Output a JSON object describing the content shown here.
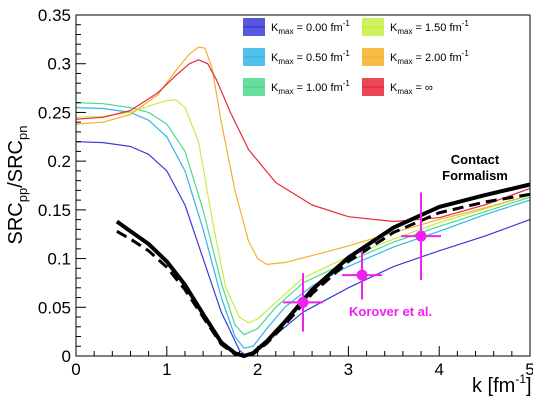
{
  "chart_data": {
    "type": "line",
    "xlabel": "k [fm",
    "xlabel_sup": "-1",
    "xlabel_end": "]",
    "ylabel_parts": [
      "SRC",
      "pp",
      "/SRC",
      "pn"
    ],
    "xlim": [
      0,
      5
    ],
    "ylim": [
      0,
      0.35
    ],
    "xticks": [
      0,
      1,
      2,
      3,
      4,
      5
    ],
    "xtick_labels": [
      "0",
      "1",
      "2",
      "3",
      "4",
      "5"
    ],
    "yticks": [
      0,
      0.05,
      0.1,
      0.15,
      0.2,
      0.25,
      0.3,
      0.35
    ],
    "ytick_labels": [
      "0",
      "0.05",
      "0.1",
      "0.15",
      "0.2",
      "0.25",
      "0.3",
      "0.35"
    ],
    "grid": false,
    "legend_position": "top-right",
    "series": [
      {
        "legend": {
          "main": "K",
          "sub": "max",
          "value": " = 0.00 fm",
          "sup": "-1"
        },
        "color": "#3b3bd8",
        "width": 1.2,
        "x": [
          0,
          0.3,
          0.6,
          0.8,
          1.0,
          1.2,
          1.4,
          1.6,
          1.8,
          1.85,
          1.9,
          2.0,
          2.2,
          2.5,
          3.0,
          3.5,
          4.0,
          4.5,
          5.0
        ],
        "y": [
          0.22,
          0.219,
          0.215,
          0.207,
          0.19,
          0.155,
          0.1,
          0.045,
          0.006,
          0.002,
          0.002,
          0.006,
          0.022,
          0.045,
          0.07,
          0.092,
          0.108,
          0.123,
          0.14
        ]
      },
      {
        "legend": {
          "main": "K",
          "sub": "max",
          "value": " = 0.50 fm",
          "sup": "-1"
        },
        "color": "#33b5e8",
        "width": 1.2,
        "x": [
          0,
          0.3,
          0.6,
          0.8,
          1.0,
          1.2,
          1.4,
          1.6,
          1.75,
          1.85,
          1.95,
          2.1,
          2.3,
          2.6,
          3.0,
          3.5,
          4.0,
          4.5,
          5.0
        ],
        "y": [
          0.255,
          0.254,
          0.25,
          0.242,
          0.225,
          0.19,
          0.13,
          0.06,
          0.02,
          0.008,
          0.01,
          0.028,
          0.05,
          0.072,
          0.092,
          0.112,
          0.128,
          0.145,
          0.16
        ]
      },
      {
        "legend": {
          "main": "K",
          "sub": "max",
          "value": " = 1.00 fm",
          "sup": "-1"
        },
        "color": "#4cd88f",
        "width": 1.2,
        "x": [
          0,
          0.3,
          0.6,
          0.8,
          1.0,
          1.2,
          1.4,
          1.6,
          1.75,
          1.85,
          2.0,
          2.2,
          2.5,
          3.0,
          3.5,
          4.0,
          4.5,
          5.0
        ],
        "y": [
          0.26,
          0.259,
          0.255,
          0.25,
          0.238,
          0.21,
          0.15,
          0.075,
          0.032,
          0.022,
          0.028,
          0.05,
          0.075,
          0.097,
          0.117,
          0.133,
          0.148,
          0.163
        ]
      },
      {
        "legend": {
          "main": "K",
          "sub": "max",
          "value": " = 1.50 fm",
          "sup": "-1"
        },
        "color": "#c5ee44",
        "width": 1.2,
        "x": [
          0,
          0.3,
          0.6,
          0.85,
          1.0,
          1.1,
          1.2,
          1.35,
          1.5,
          1.65,
          1.8,
          1.9,
          2.0,
          2.2,
          2.5,
          3.0,
          3.5,
          4.0,
          4.5,
          5.0
        ],
        "y": [
          0.245,
          0.246,
          0.25,
          0.258,
          0.262,
          0.263,
          0.255,
          0.22,
          0.14,
          0.07,
          0.04,
          0.034,
          0.038,
          0.055,
          0.08,
          0.102,
          0.12,
          0.137,
          0.151,
          0.165
        ]
      },
      {
        "legend": {
          "main": "K",
          "sub": "max",
          "value": " = 2.00 fm",
          "sup": "-1"
        },
        "color": "#f5b028",
        "width": 1.2,
        "x": [
          0,
          0.3,
          0.6,
          0.9,
          1.1,
          1.25,
          1.35,
          1.42,
          1.5,
          1.6,
          1.75,
          1.9,
          2.0,
          2.1,
          2.3,
          2.6,
          3.0,
          3.5,
          4.0,
          4.5,
          5.0
        ],
        "y": [
          0.238,
          0.24,
          0.248,
          0.268,
          0.293,
          0.31,
          0.317,
          0.316,
          0.295,
          0.24,
          0.17,
          0.118,
          0.1,
          0.094,
          0.096,
          0.103,
          0.113,
          0.127,
          0.14,
          0.152,
          0.165
        ]
      },
      {
        "legend": {
          "main": "K",
          "sub": "max",
          "value": " = ∞",
          "sup": ""
        },
        "color": "#e8283a",
        "width": 1.2,
        "x": [
          0,
          0.3,
          0.6,
          0.9,
          1.1,
          1.25,
          1.35,
          1.45,
          1.55,
          1.7,
          1.9,
          2.2,
          2.6,
          3.0,
          3.5,
          4.0,
          4.5,
          5.0
        ],
        "y": [
          0.243,
          0.245,
          0.252,
          0.27,
          0.288,
          0.3,
          0.304,
          0.3,
          0.283,
          0.25,
          0.212,
          0.178,
          0.155,
          0.143,
          0.138,
          0.142,
          0.155,
          0.172
        ]
      },
      {
        "legend": null,
        "color": "#000000",
        "width": 4,
        "dashed": false,
        "x": [
          0.45,
          0.6,
          0.8,
          1.0,
          1.2,
          1.4,
          1.6,
          1.75,
          1.85,
          1.95,
          2.1,
          2.3,
          2.6,
          3.0,
          3.5,
          4.0,
          4.5,
          5.0
        ],
        "y": [
          0.138,
          0.128,
          0.115,
          0.097,
          0.073,
          0.043,
          0.014,
          0.003,
          0.0,
          0.003,
          0.015,
          0.035,
          0.068,
          0.101,
          0.132,
          0.153,
          0.165,
          0.176
        ]
      },
      {
        "legend": null,
        "color": "#000000",
        "width": 3,
        "dashed": true,
        "x": [
          0.45,
          0.6,
          0.8,
          1.0,
          1.2,
          1.4,
          1.6,
          1.75,
          1.85,
          1.95,
          2.1,
          2.3,
          2.6,
          3.0,
          3.5,
          4.0,
          4.5,
          5.0
        ],
        "y": [
          0.128,
          0.12,
          0.108,
          0.091,
          0.068,
          0.04,
          0.012,
          0.002,
          0.0,
          0.002,
          0.013,
          0.032,
          0.064,
          0.097,
          0.127,
          0.147,
          0.158,
          0.166
        ]
      }
    ],
    "data_points": {
      "label": "Korover et al.",
      "color": "#ee22ee",
      "points": [
        {
          "x": 2.5,
          "y": 0.055,
          "xerr": 0.22,
          "yerr": 0.03
        },
        {
          "x": 3.15,
          "y": 0.083,
          "xerr": 0.22,
          "yerr": 0.025
        },
        {
          "x": 3.8,
          "y": 0.123,
          "xerr": 0.22,
          "yerr": 0.045
        }
      ]
    },
    "annotations": {
      "contact_line1": "Contact",
      "contact_line2": "Formalism",
      "korover": "Korover et al."
    }
  }
}
